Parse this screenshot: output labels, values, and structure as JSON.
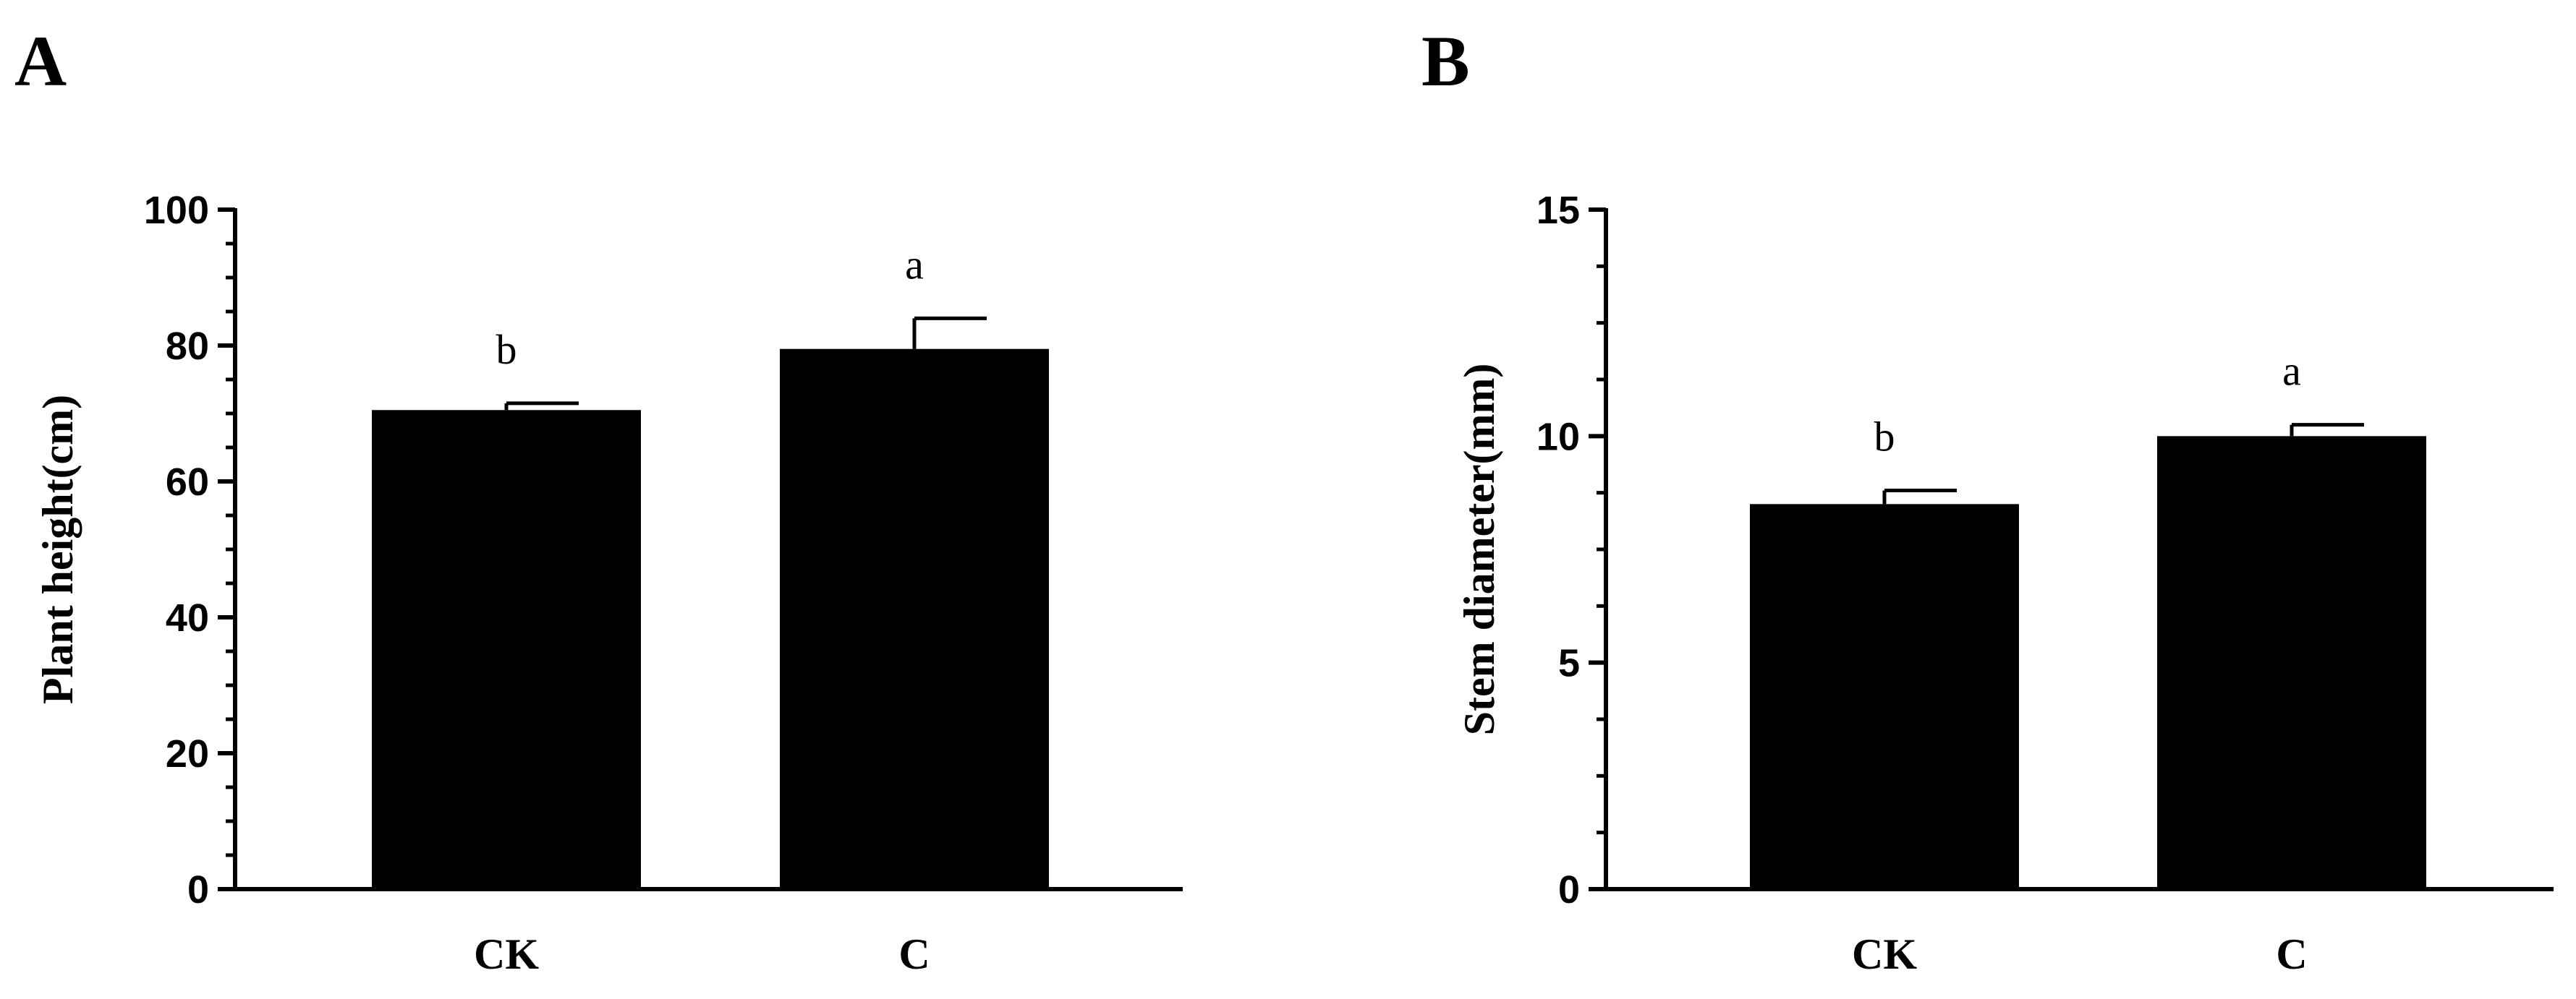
{
  "chart_data": [
    {
      "type": "bar",
      "panel": "A",
      "title": "",
      "xlabel": "",
      "ylabel": "Plant height(cm)",
      "ylim": [
        0,
        100
      ],
      "yticks": [
        "0",
        "20",
        "40",
        "60",
        "80",
        "100"
      ],
      "categories": [
        "CK",
        "C"
      ],
      "values": [
        70.5,
        79.5
      ],
      "errors": [
        1.0,
        4.5
      ],
      "significance": [
        "b",
        "a"
      ],
      "bar_color": "#000000",
      "grid": false
    },
    {
      "type": "bar",
      "panel": "B",
      "title": "",
      "xlabel": "",
      "ylabel": "Stem diameter(mm)",
      "ylim": [
        0,
        15
      ],
      "yticks": [
        "0",
        "5",
        "10",
        "15"
      ],
      "categories": [
        "CK",
        "C"
      ],
      "values": [
        8.5,
        10.0
      ],
      "errors": [
        0.3,
        0.25
      ],
      "significance": [
        "b",
        "a"
      ],
      "bar_color": "#000000",
      "grid": false
    }
  ]
}
